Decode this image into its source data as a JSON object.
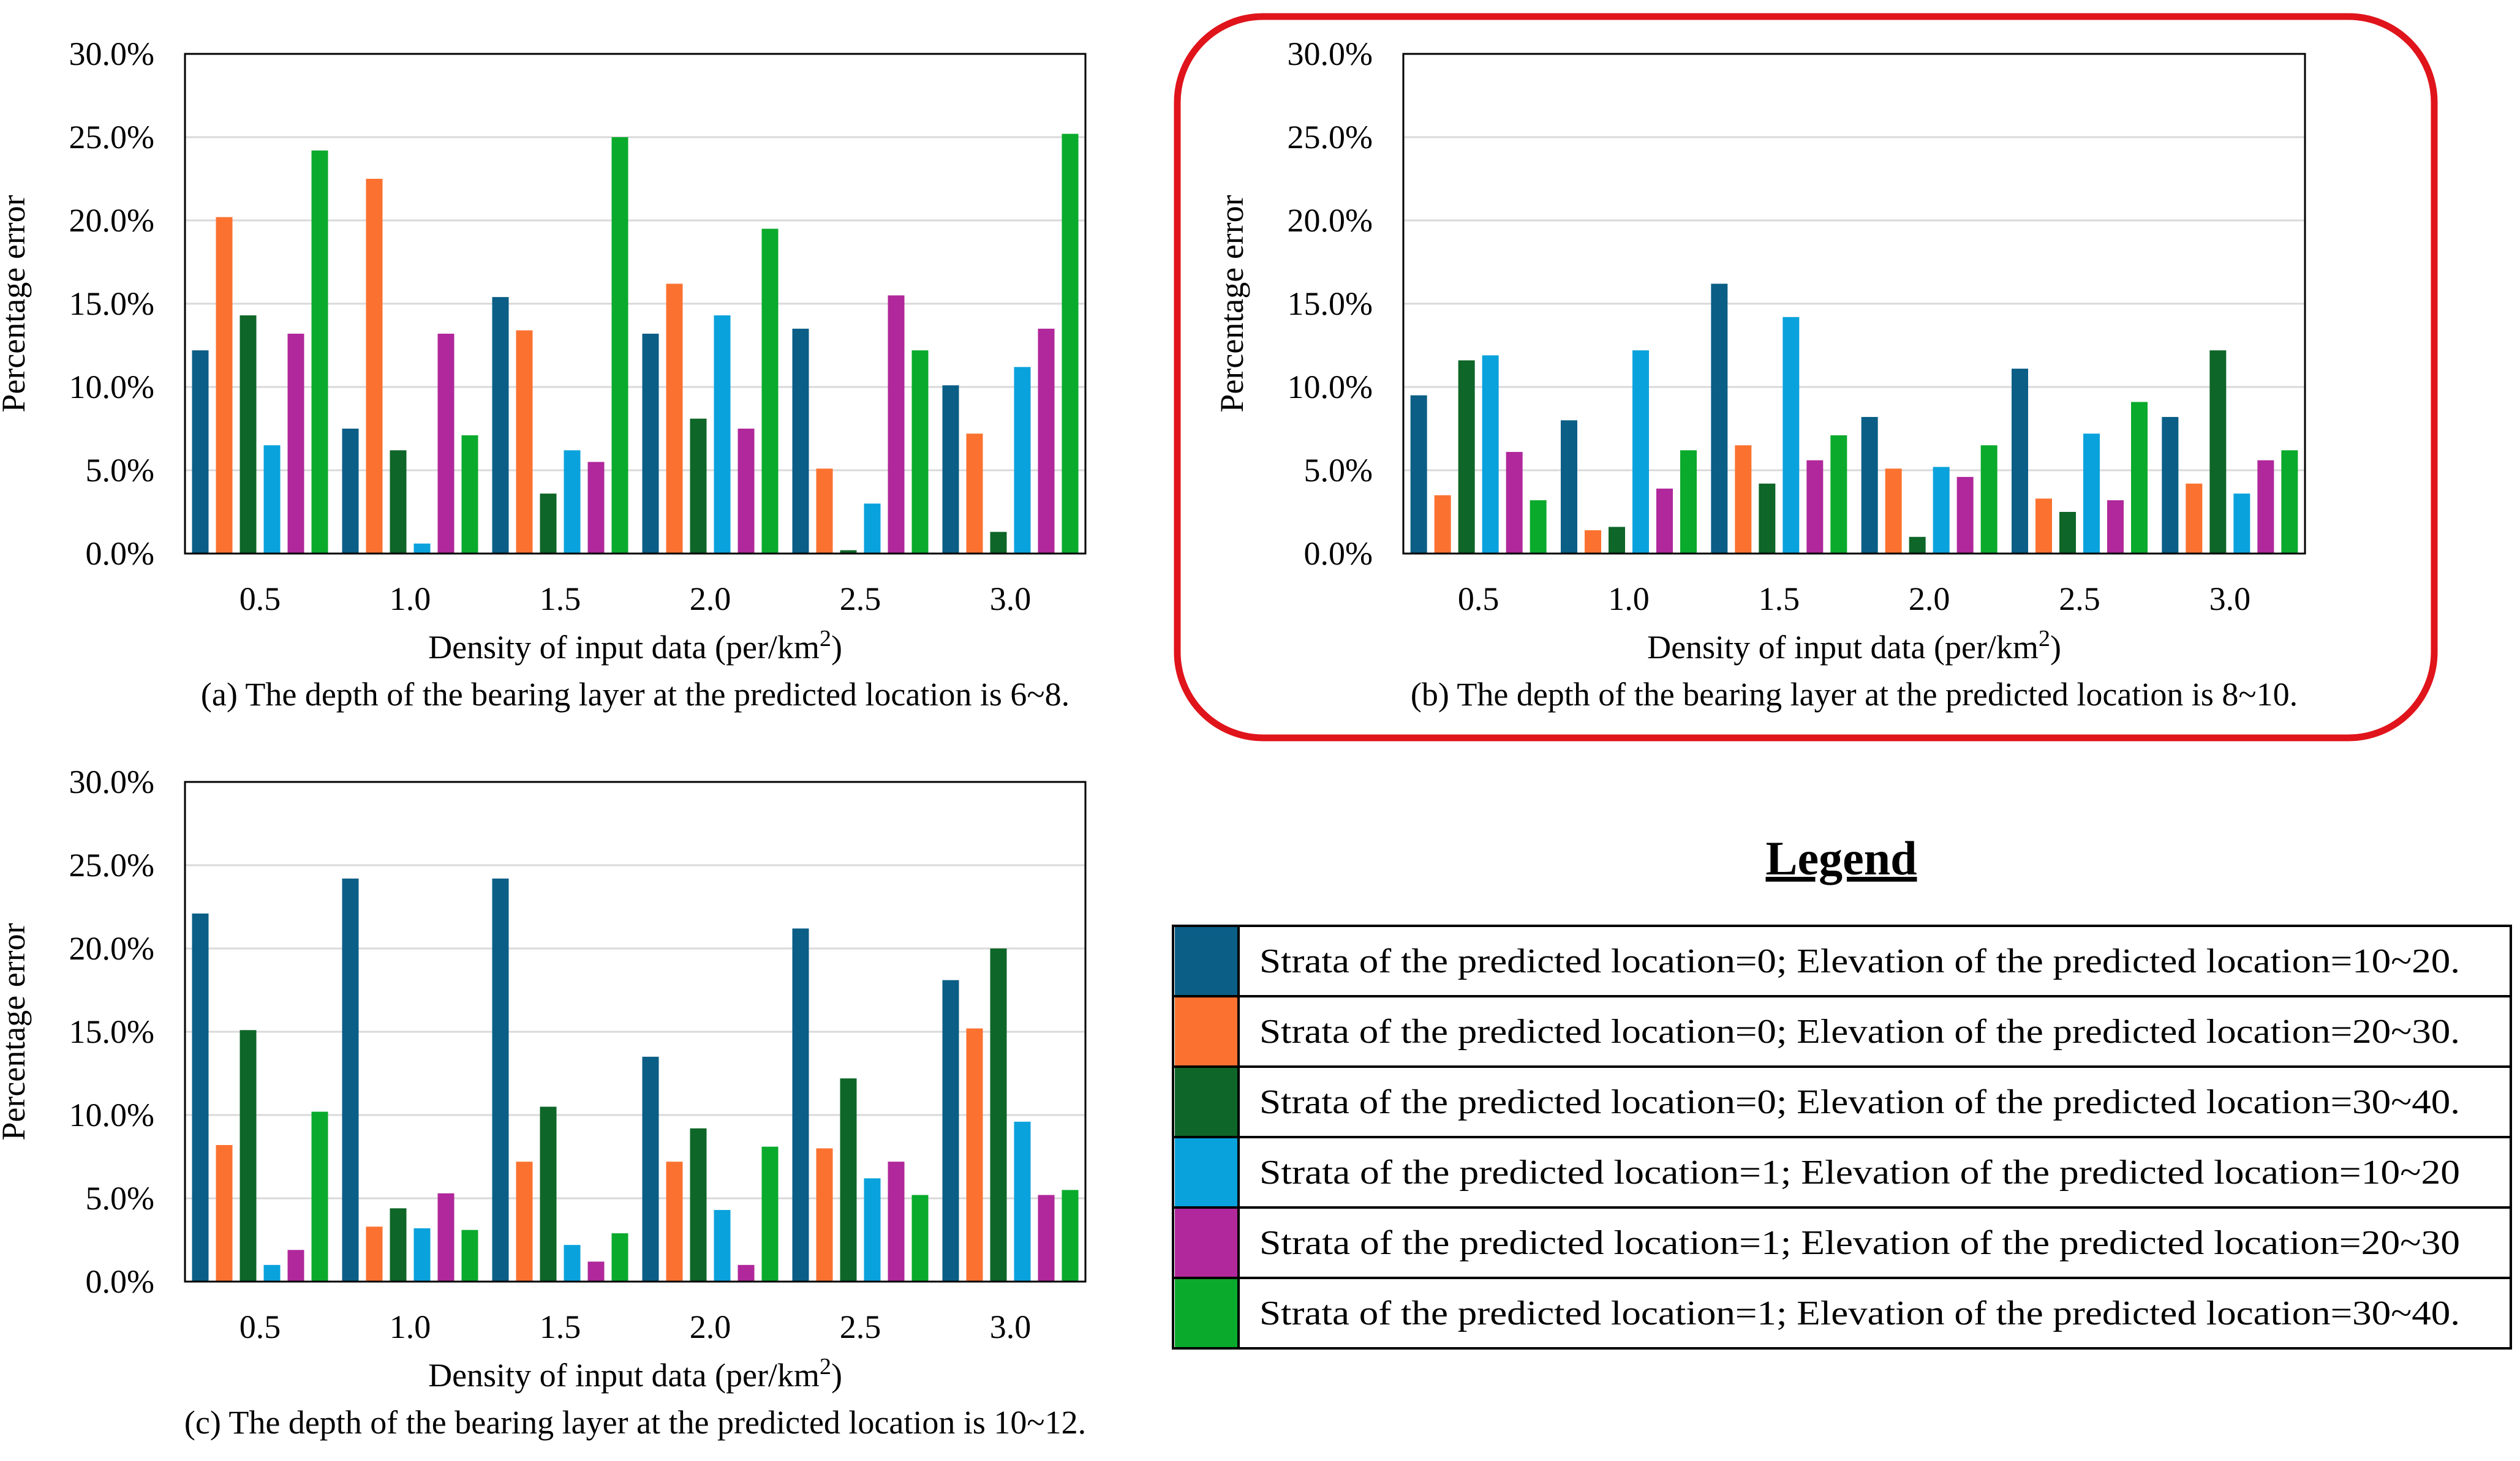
{
  "chart_data": [
    {
      "type": "bar",
      "title": "",
      "caption": "(a) The depth of the bearing layer at the predicted location is 6~8.",
      "xlabel": "Density of input data (per/km",
      "xlabel_sup": "2",
      "xlabel_tail": ")",
      "ylabel": "Percentage error",
      "ylim": [
        0,
        0.3
      ],
      "yticks": [
        "0.0%",
        "5.0%",
        "10.0%",
        "15.0%",
        "20.0%",
        "25.0%",
        "30.0%"
      ],
      "grid": true,
      "highlighted": false,
      "categories": [
        "0.5",
        "1.0",
        "1.5",
        "2.0",
        "2.5",
        "3.0"
      ],
      "series": [
        {
          "name": "s1",
          "values": [
            0.122,
            0.075,
            0.154,
            0.132,
            0.135,
            0.101
          ]
        },
        {
          "name": "s2",
          "values": [
            0.202,
            0.225,
            0.134,
            0.162,
            0.051,
            0.072
          ]
        },
        {
          "name": "s3",
          "values": [
            0.143,
            0.062,
            0.036,
            0.081,
            0.002,
            0.013
          ]
        },
        {
          "name": "s4",
          "values": [
            0.065,
            0.006,
            0.062,
            0.143,
            0.03,
            0.112
          ]
        },
        {
          "name": "s5",
          "values": [
            0.132,
            0.132,
            0.055,
            0.075,
            0.155,
            0.135
          ]
        },
        {
          "name": "s6",
          "values": [
            0.242,
            0.071,
            0.25,
            0.195,
            0.122,
            0.252
          ]
        }
      ]
    },
    {
      "type": "bar",
      "title": "",
      "caption": "(b) The depth of the bearing layer at the predicted location is 8~10.",
      "xlabel": "Density of input data (per/km",
      "xlabel_sup": "2",
      "xlabel_tail": ")",
      "ylabel": "Percentage error",
      "ylim": [
        0,
        0.3
      ],
      "yticks": [
        "0.0%",
        "5.0%",
        "10.0%",
        "15.0%",
        "20.0%",
        "25.0%",
        "30.0%"
      ],
      "grid": true,
      "highlighted": true,
      "categories": [
        "0.5",
        "1.0",
        "1.5",
        "2.0",
        "2.5",
        "3.0"
      ],
      "series": [
        {
          "name": "s1",
          "values": [
            0.095,
            0.08,
            0.162,
            0.082,
            0.111,
            0.082
          ]
        },
        {
          "name": "s2",
          "values": [
            0.035,
            0.014,
            0.065,
            0.051,
            0.033,
            0.042
          ]
        },
        {
          "name": "s3",
          "values": [
            0.116,
            0.016,
            0.042,
            0.01,
            0.025,
            0.122
          ]
        },
        {
          "name": "s4",
          "values": [
            0.119,
            0.122,
            0.142,
            0.052,
            0.072,
            0.036
          ]
        },
        {
          "name": "s5",
          "values": [
            0.061,
            0.039,
            0.056,
            0.046,
            0.032,
            0.056
          ]
        },
        {
          "name": "s6",
          "values": [
            0.032,
            0.062,
            0.071,
            0.065,
            0.091,
            0.062
          ]
        }
      ]
    },
    {
      "type": "bar",
      "title": "",
      "caption": "(c) The depth of the bearing layer at the predicted location is 10~12.",
      "xlabel": "Density of input data (per/km",
      "xlabel_sup": "2",
      "xlabel_tail": ")",
      "ylabel": "Percentage error",
      "ylim": [
        0,
        0.3
      ],
      "yticks": [
        "0.0%",
        "5.0%",
        "10.0%",
        "15.0%",
        "20.0%",
        "25.0%",
        "30.0%"
      ],
      "grid": true,
      "highlighted": false,
      "categories": [
        "0.5",
        "1.0",
        "1.5",
        "2.0",
        "2.5",
        "3.0"
      ],
      "series": [
        {
          "name": "s1",
          "values": [
            0.221,
            0.242,
            0.242,
            0.135,
            0.212,
            0.181
          ]
        },
        {
          "name": "s2",
          "values": [
            0.082,
            0.033,
            0.072,
            0.072,
            0.08,
            0.152
          ]
        },
        {
          "name": "s3",
          "values": [
            0.151,
            0.044,
            0.105,
            0.092,
            0.122,
            0.2
          ]
        },
        {
          "name": "s4",
          "values": [
            0.01,
            0.032,
            0.022,
            0.043,
            0.062,
            0.096
          ]
        },
        {
          "name": "s5",
          "values": [
            0.019,
            0.053,
            0.012,
            0.01,
            0.072,
            0.052
          ]
        },
        {
          "name": "s6",
          "values": [
            0.102,
            0.031,
            0.029,
            0.081,
            0.052,
            0.055
          ]
        }
      ]
    }
  ],
  "legend": {
    "title": "Legend",
    "items": [
      {
        "color": "#0b5e86",
        "label": "Strata of the predicted location=0; Elevation of the predicted location=10~20."
      },
      {
        "color": "#fb7230",
        "label": "Strata of the predicted location=0; Elevation of the predicted location=20~30."
      },
      {
        "color": "#0e6628",
        "label": "Strata of the predicted location=0; Elevation of the predicted location=30~40."
      },
      {
        "color": "#0aa2dc",
        "label": "Strata of the predicted location=1; Elevation of the predicted location=10~20"
      },
      {
        "color": "#b0289b",
        "label": "Strata of the predicted location=1; Elevation of the predicted location=20~30"
      },
      {
        "color": "#0aaa2c",
        "label": "Strata of the predicted location=1; Elevation of the predicted location=30~40."
      }
    ]
  },
  "colors": {
    "series": [
      "#0b5e86",
      "#fb7230",
      "#0e6628",
      "#0aa2dc",
      "#b0289b",
      "#0aaa2c"
    ],
    "highlight": "#e0141b",
    "grid": "#d9d9d9"
  }
}
